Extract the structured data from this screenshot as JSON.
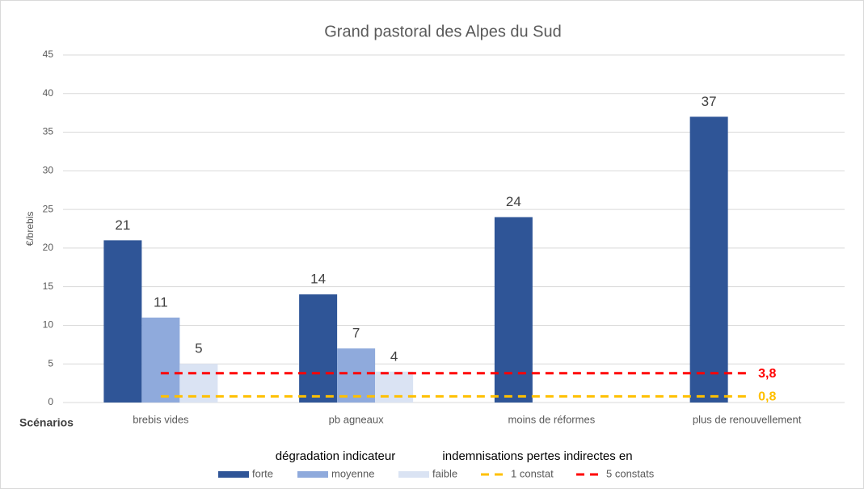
{
  "chart_data": {
    "type": "bar",
    "title": "Grand pastoral des Alpes du Sud",
    "y_label": "€/brebis",
    "x_label": "Scénarios",
    "legend_headings": [
      "dégradation indicateur",
      "indemnisations pertes indirectes en"
    ],
    "categories": [
      "brebis vides",
      "pb agneaux",
      "moins de réformes",
      "plus de renouvellement"
    ],
    "series": [
      {
        "name": "forte",
        "type": "bar",
        "color": "#2f5597",
        "values": [
          21,
          14,
          24,
          37
        ]
      },
      {
        "name": "moyenne",
        "type": "bar",
        "color": "#8faadc",
        "values": [
          11,
          7,
          null,
          null
        ]
      },
      {
        "name": "faible",
        "type": "bar",
        "color": "#dae3f3",
        "values": [
          5,
          4,
          null,
          null
        ]
      },
      {
        "name": "1 constat",
        "type": "line",
        "color": "#ffc000",
        "values": [
          0.8,
          0.8,
          0.8,
          0.8
        ],
        "value_labels": [
          null,
          null,
          null,
          "0,8"
        ]
      },
      {
        "name": "5 constats",
        "type": "line",
        "color": "#ff0000",
        "values": [
          3.8,
          3.8,
          3.8,
          3.8
        ],
        "value_labels": [
          null,
          null,
          null,
          "3,8"
        ]
      }
    ],
    "ylim": [
      0,
      45
    ],
    "yticks": [
      0,
      5,
      10,
      15,
      20,
      25,
      30,
      35,
      40,
      45
    ],
    "grid": true
  }
}
